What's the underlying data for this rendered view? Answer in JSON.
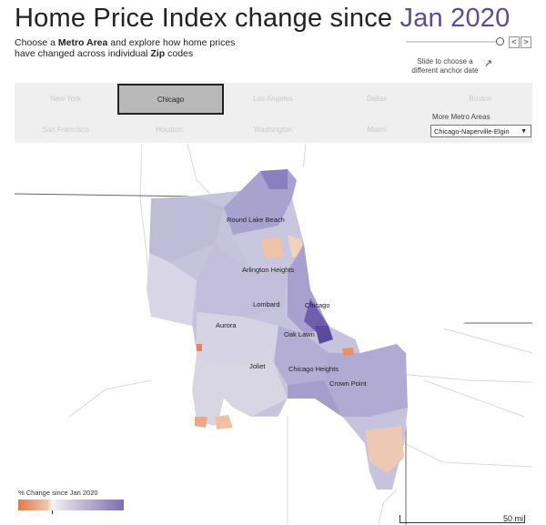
{
  "header": {
    "title_main": "Home Price Index change since",
    "title_accent": "Jan 2020",
    "subtitle_line1_pre": "Choose a",
    "subtitle_line1_bold": "Metro Area",
    "subtitle_line1_post": "and explore how home prices",
    "subtitle_line2_pre": "have changed across individual",
    "subtitle_line2_bold": "Zip",
    "subtitle_line2_post": "codes"
  },
  "controls": {
    "slider_hint": "Slide to choose a different anchor date",
    "prev_label": "<",
    "next_label": ">"
  },
  "metros": {
    "buttons": [
      "New York",
      "Chicago",
      "Los Angeles",
      "Dallas",
      "Boston",
      "San Francisco",
      "Houston",
      "Washington",
      "Miami"
    ],
    "active": "Chicago",
    "more_label": "More Metro Areas",
    "selected_metro": "Chicago-Naperville-Elgin"
  },
  "map": {
    "cities": [
      "Round Lake Beach",
      "Arlington Heights",
      "Lombard",
      "Chicago",
      "Aurora",
      "Oak Lawn",
      "Joliet",
      "Chicago Heights",
      "Crown Point"
    ]
  },
  "legend": {
    "title": "% Change since Jan 2020",
    "colors": {
      "negative": "#e07a4a",
      "neutral": "#f4f2f2",
      "positive": "#7d6fb3"
    }
  },
  "scale": {
    "label": "50 mi"
  }
}
